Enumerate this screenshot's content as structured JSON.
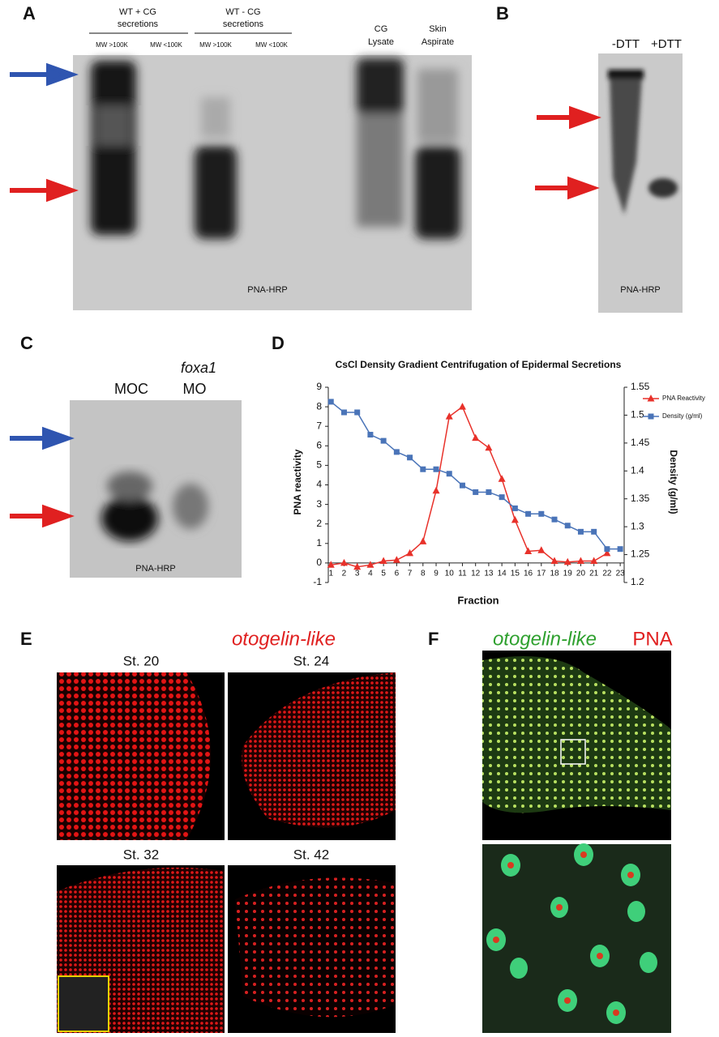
{
  "panels": {
    "A": {
      "label": "A",
      "group1": [
        "WT + CG",
        "secretions"
      ],
      "group2": [
        "WT - CG",
        "secretions"
      ],
      "mw": [
        "MW >100K",
        "MW <100K",
        "MW >100K",
        "MW <100K"
      ],
      "lane5": [
        "CG",
        "Lysate"
      ],
      "lane6": [
        "Skin",
        "Aspirate"
      ],
      "stain": "PNA-HRP"
    },
    "B": {
      "label": "B",
      "lanes": [
        "-DTT",
        "+DTT"
      ],
      "stain": "PNA-HRP"
    },
    "C": {
      "label": "C",
      "gene": "foxa1",
      "lanes": [
        "MOC",
        "MO"
      ],
      "stain": "PNA-HRP"
    },
    "D": {
      "label": "D"
    },
    "E": {
      "label": "E",
      "title": "otogelin-like",
      "stages": [
        "St. 20",
        "St. 24",
        "St. 32",
        "St. 42"
      ]
    },
    "F": {
      "label": "F",
      "title_green": "otogelin-like",
      "title_red": "PNA"
    }
  },
  "chart_data": {
    "type": "line",
    "title": "CsCl Density Gradient Centrifugation of Epidermal Secretions",
    "x_label": "Fraction",
    "y_label": "PNA reactivity",
    "y2_label": "Density (g/ml)",
    "x": [
      1,
      2,
      3,
      4,
      5,
      6,
      7,
      8,
      9,
      10,
      11,
      12,
      13,
      14,
      15,
      16,
      17,
      18,
      19,
      20,
      21,
      22,
      23
    ],
    "xlim": [
      0.8,
      23.3
    ],
    "xticks": [
      1,
      2,
      3,
      4,
      5,
      6,
      7,
      8,
      9,
      10,
      11,
      12,
      13,
      14,
      15,
      16,
      17,
      18,
      19,
      20,
      21,
      22,
      23
    ],
    "ylim": [
      -1,
      9
    ],
    "yticks": [
      -1,
      0,
      1,
      2,
      3,
      4,
      5,
      6,
      7,
      8,
      9
    ],
    "y2lim": [
      1.2,
      1.55
    ],
    "y2ticks": [
      1.2,
      1.25,
      1.3,
      1.35,
      1.4,
      1.45,
      1.5,
      1.55
    ],
    "series": [
      {
        "name": "PNA Reactivity",
        "color": "#e8312a",
        "marker": "triangle",
        "values": [
          -0.1,
          0,
          -0.2,
          -0.1,
          0.1,
          0.15,
          0.5,
          1.1,
          3.7,
          7.5,
          8.0,
          6.4,
          5.9,
          4.3,
          2.2,
          0.6,
          0.65,
          0.1,
          0.05,
          0.1,
          0.1,
          0.5,
          null
        ]
      },
      {
        "name": "Density (g/ml)",
        "color": "#4a74b8",
        "marker": "square",
        "axis": "y2",
        "values": [
          1.524,
          1.505,
          1.505,
          1.465,
          1.454,
          1.434,
          1.424,
          1.403,
          1.403,
          1.395,
          1.374,
          1.362,
          1.362,
          1.353,
          1.333,
          1.323,
          1.323,
          1.313,
          1.302,
          1.291,
          1.291,
          1.26,
          1.26
        ]
      }
    ]
  }
}
